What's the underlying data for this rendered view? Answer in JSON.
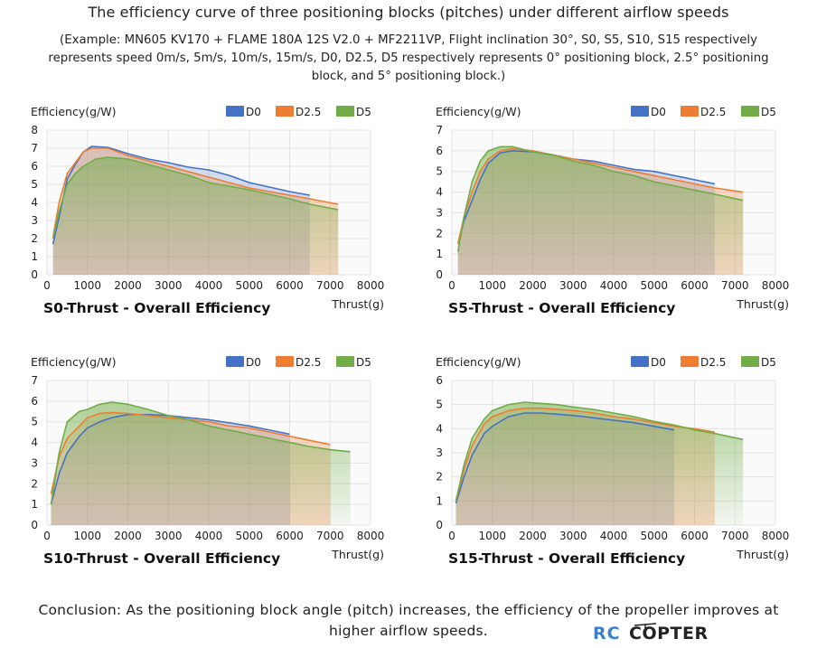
{
  "title": "The efficiency curve of three positioning blocks (pitches) under different airflow speeds",
  "subtitle": "(Example: MN605 KV170 + FLAME 180A 12S V2.0 + MF2211VP, Flight inclination 30°, S0, S5, S10, S15 respectively represents speed 0m/s, 5m/s, 10m/s, 15m/s, D0, D2.5, D5 respectively represents 0° positioning block, 2.5° positioning block, and 5° positioning block.)",
  "conclusion": "Conclusion: As the positioning block angle (pitch) increases, the efficiency of the propeller improves at higher airflow speeds.",
  "logo": {
    "text_rc": "RC",
    "text_copter": "COPTER",
    "colors": {
      "rc": "#3a7fd1",
      "copter": "#222222"
    }
  },
  "series_colors": {
    "D0": "#4472c4",
    "D2.5": "#ed7d31",
    "D5": "#70ad47"
  },
  "chart_data": [
    {
      "type": "area",
      "title": "S0-Thrust - Overall Efficiency",
      "ylabel": "Efficiency(g/W)",
      "xlabel": "Thrust(g)",
      "xlim": [
        0,
        8000
      ],
      "ylim": [
        0,
        8
      ],
      "xticks": [
        0,
        1000,
        2000,
        3000,
        4000,
        5000,
        6000,
        7000,
        8000
      ],
      "yticks": [
        0,
        1,
        2,
        3,
        4,
        5,
        6,
        7,
        8
      ],
      "legend": [
        "D0",
        "D2.5",
        "D5"
      ],
      "series": [
        {
          "name": "D0",
          "points": [
            [
              150,
              1.7
            ],
            [
              300,
              3.2
            ],
            [
              500,
              5.3
            ],
            [
              700,
              6.1
            ],
            [
              900,
              6.8
            ],
            [
              1100,
              7.1
            ],
            [
              1500,
              7.05
            ],
            [
              2000,
              6.7
            ],
            [
              2500,
              6.4
            ],
            [
              3000,
              6.2
            ],
            [
              3500,
              5.95
            ],
            [
              4000,
              5.8
            ],
            [
              4500,
              5.5
            ],
            [
              5000,
              5.1
            ],
            [
              5500,
              4.85
            ],
            [
              6000,
              4.6
            ],
            [
              6500,
              4.4
            ]
          ]
        },
        {
          "name": "D2.5",
          "points": [
            [
              150,
              2.1
            ],
            [
              300,
              4.0
            ],
            [
              500,
              5.6
            ],
            [
              700,
              6.2
            ],
            [
              900,
              6.8
            ],
            [
              1100,
              7.0
            ],
            [
              1500,
              7.0
            ],
            [
              2000,
              6.6
            ],
            [
              2500,
              6.3
            ],
            [
              3000,
              6.0
            ],
            [
              3500,
              5.7
            ],
            [
              4000,
              5.4
            ],
            [
              4500,
              5.1
            ],
            [
              5000,
              4.8
            ],
            [
              5500,
              4.6
            ],
            [
              6000,
              4.4
            ],
            [
              6500,
              4.2
            ],
            [
              7200,
              3.9
            ]
          ]
        },
        {
          "name": "D5",
          "points": [
            [
              150,
              2.0
            ],
            [
              300,
              3.5
            ],
            [
              500,
              5.0
            ],
            [
              700,
              5.6
            ],
            [
              900,
              6.0
            ],
            [
              1200,
              6.4
            ],
            [
              1500,
              6.5
            ],
            [
              2000,
              6.4
            ],
            [
              2500,
              6.1
            ],
            [
              3000,
              5.8
            ],
            [
              3500,
              5.5
            ],
            [
              4000,
              5.1
            ],
            [
              4500,
              4.9
            ],
            [
              5000,
              4.7
            ],
            [
              5500,
              4.45
            ],
            [
              6000,
              4.2
            ],
            [
              6500,
              3.9
            ],
            [
              7200,
              3.6
            ]
          ]
        }
      ]
    },
    {
      "type": "area",
      "title": "S5-Thrust - Overall Efficiency",
      "ylabel": "Efficiency(g/W)",
      "xlabel": "Thrust(g)",
      "xlim": [
        0,
        8000
      ],
      "ylim": [
        0,
        7
      ],
      "xticks": [
        0,
        1000,
        2000,
        3000,
        4000,
        5000,
        6000,
        7000,
        8000
      ],
      "yticks": [
        0,
        1,
        2,
        3,
        4,
        5,
        6,
        7
      ],
      "legend": [
        "D0",
        "D2.5",
        "D5"
      ],
      "series": [
        {
          "name": "D0",
          "points": [
            [
              150,
              1.5
            ],
            [
              300,
              2.6
            ],
            [
              500,
              3.6
            ],
            [
              700,
              4.6
            ],
            [
              900,
              5.4
            ],
            [
              1200,
              5.9
            ],
            [
              1500,
              6.0
            ],
            [
              2000,
              5.95
            ],
            [
              2500,
              5.8
            ],
            [
              3000,
              5.6
            ],
            [
              3500,
              5.5
            ],
            [
              4000,
              5.3
            ],
            [
              4500,
              5.1
            ],
            [
              5000,
              5.0
            ],
            [
              5500,
              4.8
            ],
            [
              6000,
              4.6
            ],
            [
              6500,
              4.4
            ]
          ]
        },
        {
          "name": "D2.5",
          "points": [
            [
              150,
              1.5
            ],
            [
              300,
              2.8
            ],
            [
              500,
              4.0
            ],
            [
              700,
              5.0
            ],
            [
              900,
              5.6
            ],
            [
              1200,
              6.0
            ],
            [
              1500,
              6.1
            ],
            [
              2000,
              6.0
            ],
            [
              2500,
              5.8
            ],
            [
              3000,
              5.6
            ],
            [
              3500,
              5.4
            ],
            [
              4000,
              5.2
            ],
            [
              4500,
              5.0
            ],
            [
              5000,
              4.8
            ],
            [
              5500,
              4.6
            ],
            [
              6000,
              4.4
            ],
            [
              6500,
              4.2
            ],
            [
              7200,
              4.0
            ]
          ]
        },
        {
          "name": "D5",
          "points": [
            [
              150,
              1.1
            ],
            [
              300,
              2.8
            ],
            [
              500,
              4.5
            ],
            [
              700,
              5.5
            ],
            [
              900,
              6.0
            ],
            [
              1200,
              6.2
            ],
            [
              1500,
              6.2
            ],
            [
              2000,
              5.95
            ],
            [
              2500,
              5.8
            ],
            [
              3000,
              5.5
            ],
            [
              3500,
              5.3
            ],
            [
              4000,
              5.0
            ],
            [
              4500,
              4.8
            ],
            [
              5000,
              4.5
            ],
            [
              5500,
              4.3
            ],
            [
              6000,
              4.1
            ],
            [
              6500,
              3.9
            ],
            [
              7200,
              3.6
            ]
          ]
        }
      ]
    },
    {
      "type": "area",
      "title": "S10-Thrust - Overall Efficiency",
      "ylabel": "Efficiency(g/W)",
      "xlabel": "Thrust(g)",
      "xlim": [
        0,
        8000
      ],
      "ylim": [
        0,
        7
      ],
      "xticks": [
        0,
        1000,
        2000,
        3000,
        4000,
        5000,
        6000,
        7000,
        8000
      ],
      "yticks": [
        0,
        1,
        2,
        3,
        4,
        5,
        6,
        7
      ],
      "legend": [
        "D0",
        "D2.5",
        "D5"
      ],
      "series": [
        {
          "name": "D0",
          "points": [
            [
              100,
              1.0
            ],
            [
              300,
              2.5
            ],
            [
              500,
              3.5
            ],
            [
              800,
              4.3
            ],
            [
              1000,
              4.7
            ],
            [
              1300,
              5.0
            ],
            [
              1600,
              5.2
            ],
            [
              2000,
              5.35
            ],
            [
              2500,
              5.35
            ],
            [
              3000,
              5.3
            ],
            [
              3500,
              5.2
            ],
            [
              4000,
              5.1
            ],
            [
              4500,
              4.95
            ],
            [
              5000,
              4.8
            ],
            [
              5500,
              4.6
            ],
            [
              6000,
              4.4
            ]
          ]
        },
        {
          "name": "D2.5",
          "points": [
            [
              100,
              1.5
            ],
            [
              300,
              3.3
            ],
            [
              500,
              4.2
            ],
            [
              800,
              4.8
            ],
            [
              1000,
              5.2
            ],
            [
              1300,
              5.4
            ],
            [
              1600,
              5.45
            ],
            [
              2000,
              5.4
            ],
            [
              2500,
              5.3
            ],
            [
              3000,
              5.2
            ],
            [
              3500,
              5.1
            ],
            [
              4000,
              5.0
            ],
            [
              4500,
              4.8
            ],
            [
              5000,
              4.7
            ],
            [
              5500,
              4.5
            ],
            [
              6000,
              4.3
            ],
            [
              6500,
              4.1
            ],
            [
              7000,
              3.9
            ]
          ]
        },
        {
          "name": "D5",
          "points": [
            [
              100,
              1.0
            ],
            [
              300,
              3.5
            ],
            [
              500,
              5.0
            ],
            [
              800,
              5.5
            ],
            [
              1000,
              5.6
            ],
            [
              1300,
              5.85
            ],
            [
              1600,
              5.95
            ],
            [
              2000,
              5.85
            ],
            [
              2500,
              5.6
            ],
            [
              3000,
              5.3
            ],
            [
              3500,
              5.1
            ],
            [
              4000,
              4.8
            ],
            [
              4500,
              4.6
            ],
            [
              5000,
              4.4
            ],
            [
              5500,
              4.2
            ],
            [
              6000,
              4.0
            ],
            [
              6500,
              3.8
            ],
            [
              7000,
              3.65
            ],
            [
              7500,
              3.55
            ]
          ]
        }
      ]
    },
    {
      "type": "area",
      "title": "S15-Thrust - Overall Efficiency",
      "ylabel": "Efficiency(g/W)",
      "xlabel": "Thrust(g)",
      "xlim": [
        0,
        8000
      ],
      "ylim": [
        0,
        6
      ],
      "xticks": [
        0,
        1000,
        2000,
        3000,
        4000,
        5000,
        6000,
        7000,
        8000
      ],
      "yticks": [
        0,
        1,
        2,
        3,
        4,
        5,
        6
      ],
      "legend": [
        "D0",
        "D2.5",
        "D5"
      ],
      "series": [
        {
          "name": "D0",
          "points": [
            [
              100,
              0.9
            ],
            [
              300,
              2.0
            ],
            [
              500,
              2.9
            ],
            [
              800,
              3.8
            ],
            [
              1000,
              4.1
            ],
            [
              1400,
              4.5
            ],
            [
              1800,
              4.65
            ],
            [
              2200,
              4.65
            ],
            [
              2600,
              4.6
            ],
            [
              3000,
              4.55
            ],
            [
              3500,
              4.45
            ],
            [
              4000,
              4.35
            ],
            [
              4500,
              4.25
            ],
            [
              5000,
              4.1
            ],
            [
              5500,
              3.95
            ]
          ]
        },
        {
          "name": "D2.5",
          "points": [
            [
              100,
              1.0
            ],
            [
              300,
              2.3
            ],
            [
              500,
              3.3
            ],
            [
              800,
              4.2
            ],
            [
              1000,
              4.5
            ],
            [
              1400,
              4.75
            ],
            [
              1800,
              4.85
            ],
            [
              2200,
              4.85
            ],
            [
              2600,
              4.8
            ],
            [
              3000,
              4.75
            ],
            [
              3500,
              4.65
            ],
            [
              4000,
              4.5
            ],
            [
              4500,
              4.4
            ],
            [
              5000,
              4.25
            ],
            [
              5500,
              4.1
            ],
            [
              6000,
              4.0
            ],
            [
              6500,
              3.85
            ]
          ]
        },
        {
          "name": "D5",
          "points": [
            [
              100,
              1.0
            ],
            [
              300,
              2.5
            ],
            [
              500,
              3.6
            ],
            [
              800,
              4.4
            ],
            [
              1000,
              4.75
            ],
            [
              1400,
              5.0
            ],
            [
              1800,
              5.1
            ],
            [
              2200,
              5.05
            ],
            [
              2600,
              5.0
            ],
            [
              3000,
              4.9
            ],
            [
              3500,
              4.8
            ],
            [
              4000,
              4.65
            ],
            [
              4500,
              4.5
            ],
            [
              5000,
              4.3
            ],
            [
              5500,
              4.15
            ],
            [
              6000,
              3.95
            ],
            [
              6500,
              3.8
            ],
            [
              7200,
              3.55
            ]
          ]
        }
      ]
    }
  ]
}
